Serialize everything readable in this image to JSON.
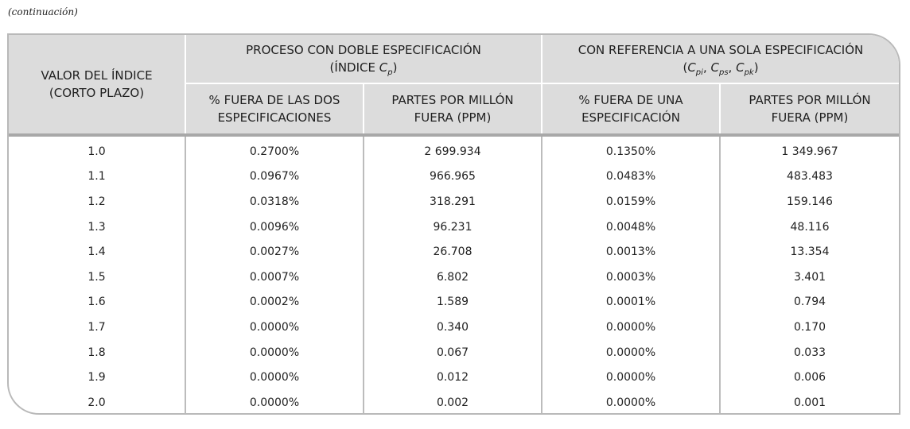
{
  "caption": "(continuación)",
  "header": {
    "index_col": [
      "VALOR DEL ÍNDICE",
      "(CORTO PLAZO)"
    ],
    "group1": {
      "line1": "PROCESO CON DOBLE ESPECIFICACIÓN",
      "line2_prefix": "(ÍNDICE ",
      "line2_symbol": "C",
      "line2_sub": "p",
      "line2_suffix": ")"
    },
    "group2": {
      "line1": "CON REFERENCIA A UNA SOLA ESPECIFICACIÓN",
      "open": "(",
      "sym1": "C",
      "sub1": "pi",
      "sep1": ", ",
      "sym2": "C",
      "sub2": "ps",
      "sep2": ", ",
      "sym3": "C",
      "sub3": "pk",
      "close": ")"
    },
    "sub_headers": [
      [
        "% FUERA DE LAS DOS",
        "ESPECIFICACIONES"
      ],
      [
        "PARTES POR MILLÓN",
        "FUERA (PPM)"
      ],
      [
        "% FUERA DE UNA",
        "ESPECIFICACIÓN"
      ],
      [
        "PARTES POR MILLÓN",
        "FUERA (PPM)"
      ]
    ]
  },
  "rows": [
    [
      "1.0",
      "0.2700%",
      "2 699.934",
      "0.1350%",
      "1 349.967"
    ],
    [
      "1.1",
      "0.0967%",
      "966.965",
      "0.0483%",
      "483.483"
    ],
    [
      "1.2",
      "0.0318%",
      "318.291",
      "0.0159%",
      "159.146"
    ],
    [
      "1.3",
      "0.0096%",
      "96.231",
      "0.0048%",
      "48.116"
    ],
    [
      "1.4",
      "0.0027%",
      "26.708",
      "0.0013%",
      "13.354"
    ],
    [
      "1.5",
      "0.0007%",
      "6.802",
      "0.0003%",
      "3.401"
    ],
    [
      "1.6",
      "0.0002%",
      "1.589",
      "0.0001%",
      "0.794"
    ],
    [
      "1.7",
      "0.0000%",
      "0.340",
      "0.0000%",
      "0.170"
    ],
    [
      "1.8",
      "0.0000%",
      "0.067",
      "0.0000%",
      "0.033"
    ],
    [
      "1.9",
      "0.0000%",
      "0.012",
      "0.0000%",
      "0.006"
    ],
    [
      "2.0",
      "0.0000%",
      "0.002",
      "0.0000%",
      "0.001"
    ]
  ],
  "colors": {
    "header_bg": "#dcdcdc",
    "frame_border": "#b9b9b9",
    "column_rule": "#bcbcbc",
    "header_rule": "#a8a8a8"
  }
}
